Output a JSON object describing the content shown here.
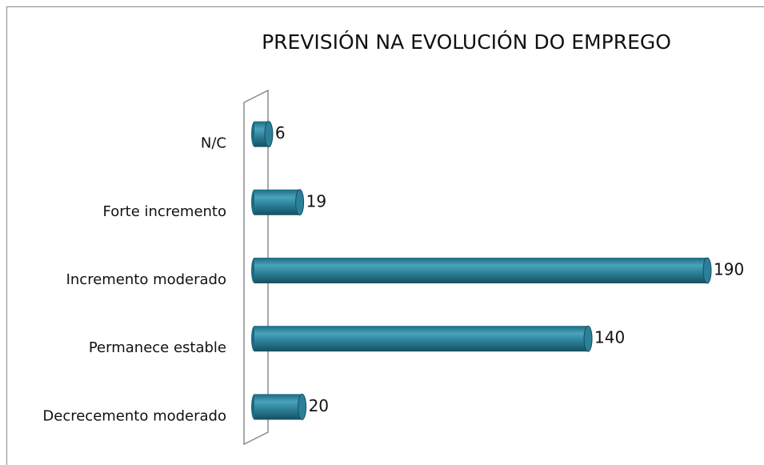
{
  "chart_data": {
    "type": "bar",
    "orientation": "horizontal",
    "title": "PREVISIÓN NA EVOLUCIÓN DO EMPREGO",
    "categories": [
      "N/C",
      "Forte incremento",
      "Incremento moderado",
      "Permanece estable",
      "Decrecemento moderado"
    ],
    "values": [
      6,
      19,
      190,
      140,
      20
    ],
    "color": "#2b7f98"
  }
}
